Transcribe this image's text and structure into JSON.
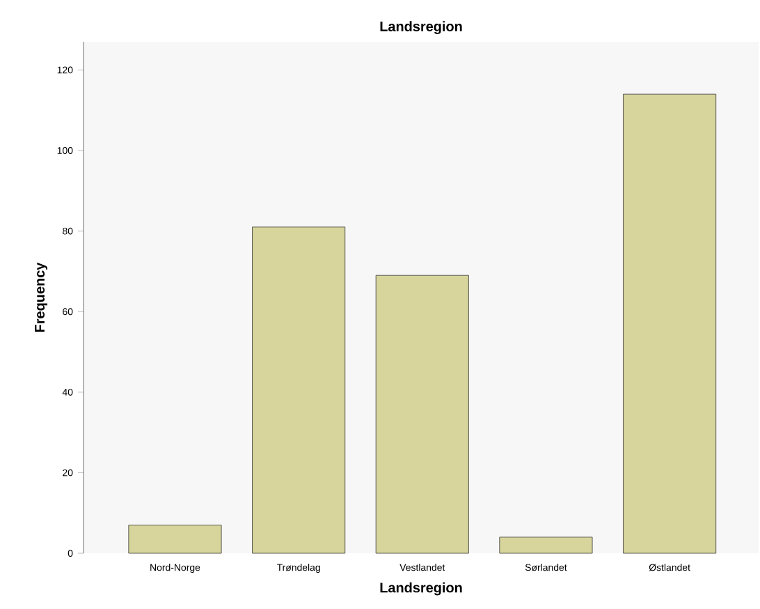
{
  "chart_data": {
    "type": "bar",
    "title": "Landsregion",
    "xlabel": "Landsregion",
    "ylabel": "Frequency",
    "categories": [
      "Nord-Norge",
      "Trøndelag",
      "Vestlandet",
      "Sørlandet",
      "Østlandet"
    ],
    "values": [
      7,
      81,
      69,
      4,
      114
    ],
    "color": "#d7d59b",
    "ylim": [
      0,
      127
    ],
    "yticks": [
      0,
      20,
      40,
      60,
      80,
      100,
      120
    ]
  }
}
